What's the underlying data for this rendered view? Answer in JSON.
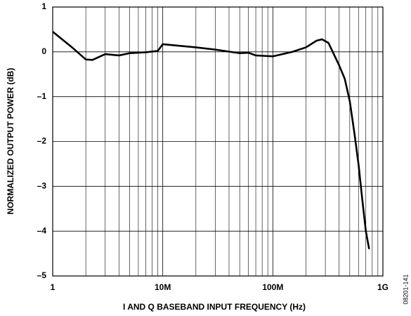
{
  "chart_data": {
    "type": "line",
    "xlabel": "I AND Q BASEBAND INPUT FREQUENCY (Hz)",
    "ylabel": "NORMALIZED OUTPUT POWER (dB)",
    "figure_id": "08201-141",
    "x_scale": "log",
    "grid": true,
    "minor_grid": true,
    "xlim": [
      1,
      1000
    ],
    "xticks": [
      1,
      {
        "value": 10,
        "label": "10M"
      },
      {
        "value": 100,
        "label": "100M"
      },
      {
        "value": 1000,
        "label": "1G"
      }
    ],
    "ylim": [
      -5,
      1
    ],
    "yticks": [
      {
        "value": -5,
        "label": "–5"
      },
      {
        "value": -4,
        "label": "–4"
      },
      {
        "value": -3,
        "label": "–3"
      },
      {
        "value": -2,
        "label": "–2"
      },
      {
        "value": -1,
        "label": "–1"
      },
      0,
      1
    ],
    "x": [
      1,
      1.5,
      2,
      2.3,
      3,
      4,
      5,
      7,
      9,
      10,
      20,
      30,
      50,
      60,
      70,
      100,
      150,
      200,
      250,
      280,
      320,
      350,
      400,
      450,
      500,
      550,
      600,
      650,
      700,
      750
    ],
    "series": [
      {
        "color": "#000000",
        "values": [
          0.45,
          0.1,
          -0.17,
          -0.18,
          -0.05,
          -0.08,
          -0.03,
          -0.01,
          0.02,
          0.17,
          0.1,
          0.05,
          -0.03,
          -0.02,
          -0.08,
          -0.1,
          0,
          0.1,
          0.25,
          0.28,
          0.2,
          0,
          -0.3,
          -0.6,
          -1.1,
          -1.8,
          -2.5,
          -3.3,
          -4.0,
          -4.4
        ]
      }
    ]
  }
}
